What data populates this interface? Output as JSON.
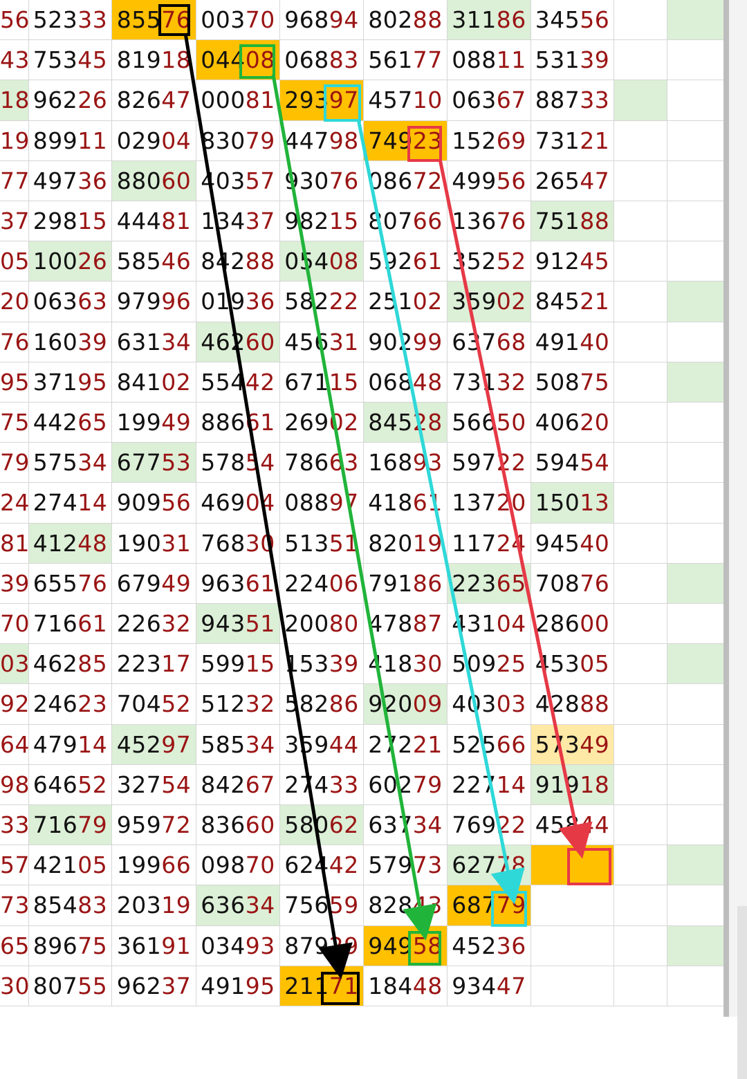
{
  "sheet": {
    "rows": [
      [
        "56",
        "52333",
        "85576",
        "00370",
        "96894",
        "80288",
        "31186",
        "34556",
        "",
        ""
      ],
      [
        "43",
        "75345",
        "81918",
        "04408",
        "06883",
        "56177",
        "08811",
        "53139",
        "",
        ""
      ],
      [
        "18",
        "96226",
        "82647",
        "00081",
        "29397",
        "45710",
        "06367",
        "88733",
        "",
        ""
      ],
      [
        "19",
        "89911",
        "02904",
        "83079",
        "44798",
        "74923",
        "15269",
        "73121",
        "",
        ""
      ],
      [
        "77",
        "49736",
        "88060",
        "40357",
        "93076",
        "08672",
        "49956",
        "26547",
        "",
        ""
      ],
      [
        "37",
        "29815",
        "44481",
        "13437",
        "98215",
        "80766",
        "13676",
        "75188",
        "",
        ""
      ],
      [
        "05",
        "10026",
        "58546",
        "84288",
        "05408",
        "59261",
        "35252",
        "91245",
        "",
        ""
      ],
      [
        "20",
        "06363",
        "97996",
        "01936",
        "58222",
        "25102",
        "35902",
        "84521",
        "",
        ""
      ],
      [
        "76",
        "16039",
        "63134",
        "46260",
        "45631",
        "90299",
        "63768",
        "49140",
        "",
        ""
      ],
      [
        "95",
        "37195",
        "84102",
        "55442",
        "67115",
        "06848",
        "73132",
        "50875",
        "",
        ""
      ],
      [
        "75",
        "44265",
        "19949",
        "88661",
        "26902",
        "84528",
        "56650",
        "40620",
        "",
        ""
      ],
      [
        "79",
        "57534",
        "67753",
        "57854",
        "78663",
        "16893",
        "59722",
        "59454",
        "",
        ""
      ],
      [
        "24",
        "27414",
        "90956",
        "46904",
        "08897",
        "41861",
        "13720",
        "15013",
        "",
        ""
      ],
      [
        "81",
        "41248",
        "19031",
        "76830",
        "51351",
        "82019",
        "11724",
        "94540",
        "",
        ""
      ],
      [
        "39",
        "65576",
        "67949",
        "96361",
        "22406",
        "79186",
        "22365",
        "70876",
        "",
        ""
      ],
      [
        "70",
        "71661",
        "22632",
        "94351",
        "20080",
        "47887",
        "43104",
        "28600",
        "",
        ""
      ],
      [
        "03",
        "46285",
        "22317",
        "59915",
        "15339",
        "41830",
        "50925",
        "45305",
        "",
        ""
      ],
      [
        "92",
        "24623",
        "70452",
        "51232",
        "58286",
        "92009",
        "40303",
        "42888",
        "",
        ""
      ],
      [
        "64",
        "47914",
        "45297",
        "58534",
        "35944",
        "27221",
        "52566",
        "57349",
        "",
        ""
      ],
      [
        "98",
        "64652",
        "32754",
        "84267",
        "27433",
        "60279",
        "22714",
        "91918",
        "",
        ""
      ],
      [
        "33",
        "71679",
        "95972",
        "83660",
        "58062",
        "63734",
        "76922",
        "45844",
        "",
        ""
      ],
      [
        "57",
        "42105",
        "19966",
        "09870",
        "62442",
        "57973",
        "62778",
        "",
        "",
        ""
      ],
      [
        "73",
        "85483",
        "20319",
        "63634",
        "75659",
        "82843",
        "68779",
        "",
        "",
        ""
      ],
      [
        "65",
        "89675",
        "36191",
        "03493",
        "87929",
        "94958",
        "45236",
        "",
        "",
        ""
      ],
      [
        "30",
        "80755",
        "96237",
        "49195",
        "21171",
        "18448",
        "93447",
        "",
        "",
        ""
      ]
    ],
    "fills": [
      [
        "",
        "",
        "orange",
        "",
        "",
        "",
        "green",
        "",
        "",
        "green"
      ],
      [
        "",
        "",
        "",
        "orange",
        "",
        "",
        "",
        "",
        "",
        ""
      ],
      [
        "green",
        "",
        "",
        "",
        "orange",
        "",
        "",
        "",
        "green",
        ""
      ],
      [
        "",
        "",
        "",
        "",
        "",
        "orange",
        "",
        "",
        "",
        ""
      ],
      [
        "",
        "",
        "green",
        "",
        "",
        "",
        "",
        "",
        "",
        ""
      ],
      [
        "",
        "",
        "",
        "",
        "",
        "",
        "",
        "green",
        "",
        ""
      ],
      [
        "",
        "green",
        "",
        "",
        "green",
        "",
        "",
        "",
        "",
        ""
      ],
      [
        "",
        "",
        "",
        "",
        "",
        "",
        "green",
        "",
        "",
        "green"
      ],
      [
        "",
        "",
        "",
        "green",
        "",
        "",
        "",
        "",
        "",
        ""
      ],
      [
        "",
        "",
        "",
        "",
        "",
        "",
        "",
        "",
        "",
        "green"
      ],
      [
        "",
        "",
        "",
        "",
        "",
        "green",
        "",
        "",
        "",
        ""
      ],
      [
        "",
        "",
        "green",
        "",
        "",
        "",
        "",
        "",
        "",
        ""
      ],
      [
        "",
        "",
        "",
        "",
        "",
        "",
        "",
        "green",
        "",
        ""
      ],
      [
        "",
        "green",
        "",
        "",
        "",
        "",
        "",
        "",
        "",
        ""
      ],
      [
        "",
        "",
        "",
        "",
        "",
        "",
        "green",
        "",
        "",
        "green"
      ],
      [
        "",
        "",
        "",
        "green",
        "",
        "",
        "",
        "",
        "",
        ""
      ],
      [
        "green",
        "",
        "",
        "",
        "",
        "",
        "",
        "",
        "",
        "green"
      ],
      [
        "",
        "",
        "",
        "",
        "",
        "green",
        "",
        "",
        "",
        ""
      ],
      [
        "",
        "",
        "green",
        "",
        "",
        "",
        "",
        "pale",
        "",
        ""
      ],
      [
        "",
        "",
        "",
        "",
        "",
        "",
        "",
        "green",
        "",
        ""
      ],
      [
        "",
        "green",
        "",
        "",
        "green",
        "",
        "",
        "",
        "",
        ""
      ],
      [
        "",
        "",
        "",
        "",
        "",
        "",
        "green",
        "orange",
        "",
        "green"
      ],
      [
        "",
        "",
        "",
        "green",
        "",
        "",
        "orange",
        "",
        "",
        ""
      ],
      [
        "",
        "",
        "",
        "",
        "",
        "orange",
        "",
        "",
        "",
        "green"
      ],
      [
        "",
        "",
        "",
        "",
        "orange",
        "",
        "",
        "",
        "",
        ""
      ]
    ]
  },
  "annotations": {
    "black_color": "#000000",
    "green_color": "#21b43a",
    "cyan_color": "#2fd8d8",
    "red_color": "#e63946"
  }
}
